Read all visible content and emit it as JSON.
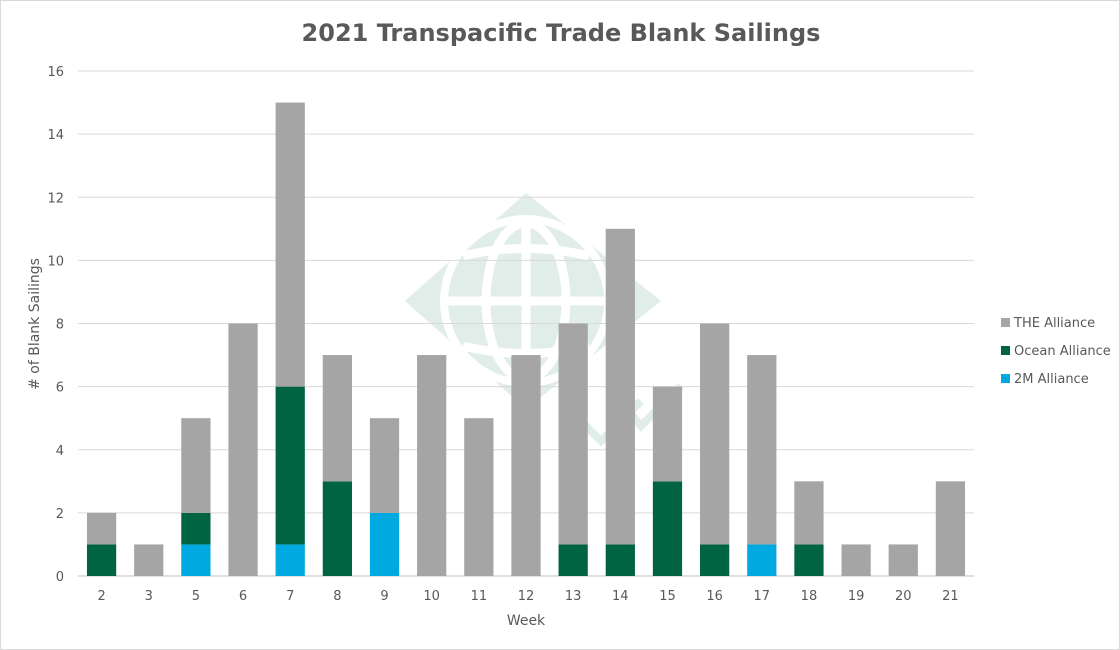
{
  "chart_data": {
    "type": "bar",
    "stacked": true,
    "title": "2021 Transpacific Trade Blank Sailings",
    "xlabel": "Week",
    "ylabel": "# of Blank Sailings",
    "ylim": [
      0,
      16
    ],
    "yticks": [
      0,
      2,
      4,
      6,
      8,
      10,
      12,
      14,
      16
    ],
    "grid": true,
    "legend_position": "right",
    "categories": [
      "2",
      "3",
      "5",
      "6",
      "7",
      "8",
      "9",
      "10",
      "11",
      "12",
      "13",
      "14",
      "15",
      "16",
      "17",
      "18",
      "19",
      "20",
      "21"
    ],
    "series": [
      {
        "name": "2M Alliance",
        "color": "#00a9e0",
        "values": [
          0,
          0,
          1,
          0,
          1,
          0,
          2,
          0,
          0,
          0,
          0,
          0,
          0,
          0,
          1,
          0,
          0,
          0,
          0
        ]
      },
      {
        "name": "Ocean Alliance",
        "color": "#006341",
        "values": [
          1,
          0,
          1,
          0,
          5,
          3,
          0,
          0,
          0,
          0,
          1,
          1,
          3,
          1,
          0,
          1,
          0,
          0,
          0
        ]
      },
      {
        "name": "THE Alliance",
        "color": "#a5a5a5",
        "values": [
          1,
          1,
          3,
          8,
          9,
          4,
          3,
          7,
          5,
          7,
          7,
          10,
          3,
          7,
          6,
          2,
          1,
          1,
          3
        ]
      }
    ],
    "legend_order": [
      "THE Alliance",
      "Ocean Alliance",
      "2M Alliance"
    ]
  }
}
